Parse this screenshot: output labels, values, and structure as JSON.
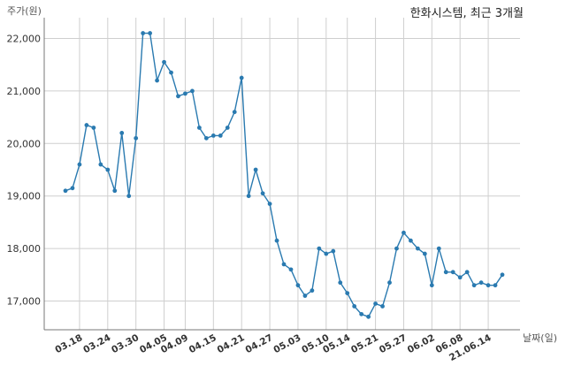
{
  "chart_data": {
    "type": "line",
    "title": "한화시스템, 최근 3개월",
    "ylabel": "주가(원)",
    "xlabel": "날짜(일)",
    "ylim": [
      16500,
      22300
    ],
    "yticks": [
      17000,
      18000,
      19000,
      20000,
      21000,
      22000
    ],
    "ytick_labels": [
      "17,000",
      "18,000",
      "19,000",
      "20,000",
      "21,000",
      "22,000"
    ],
    "xtick_labels": [
      "03.18",
      "03.24",
      "03.30",
      "04.05",
      "04.09",
      "04.15",
      "04.21",
      "04.27",
      "05.03",
      "05.10",
      "05.14",
      "05.21",
      "05.27",
      "06.02",
      "06.08",
      "21.06.14"
    ],
    "xtick_positions": [
      2,
      6,
      10,
      14,
      17,
      21,
      25,
      29,
      33,
      37,
      40,
      44,
      48,
      52,
      56,
      60
    ],
    "grid": true,
    "line_color": "#2a7ab0",
    "series": [
      {
        "name": "",
        "values": [
          19100,
          19150,
          19600,
          20350,
          20300,
          19600,
          19500,
          19100,
          20200,
          19000,
          20100,
          22100,
          22100,
          21200,
          21550,
          21350,
          20900,
          20950,
          21000,
          20300,
          20100,
          20150,
          20150,
          20300,
          20600,
          21250,
          19000,
          19500,
          19050,
          18850,
          18150,
          17700,
          17600,
          17300,
          17100,
          17200,
          18000,
          17900,
          17950,
          17350,
          17150,
          16900,
          16750,
          16700,
          16950,
          16900,
          17350,
          18000,
          18300,
          18150,
          18000,
          17900,
          17300,
          18000,
          17550,
          17550,
          17450,
          17550,
          17300,
          17350,
          17300,
          17300,
          17500
        ]
      }
    ]
  }
}
